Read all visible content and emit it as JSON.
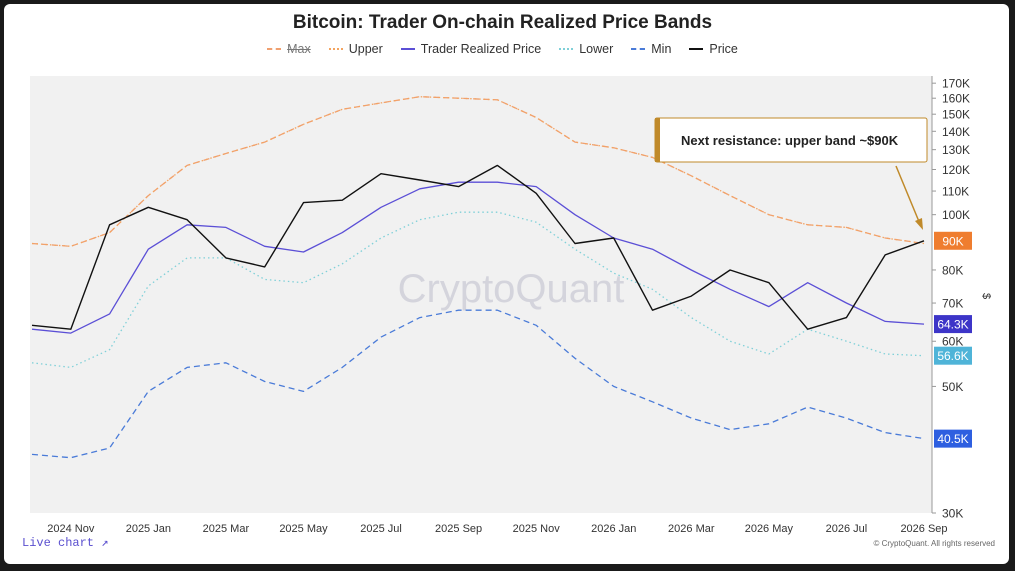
{
  "chart_data": {
    "type": "line",
    "title": "Bitcoin: Trader On-chain Realized Price Bands",
    "ylabel": "$",
    "y_scale": "log",
    "ylim": [
      30000,
      175000
    ],
    "y_ticks": [
      {
        "value": 30000,
        "label": "30K"
      },
      {
        "value": 50000,
        "label": "50K"
      },
      {
        "value": 60000,
        "label": "60K"
      },
      {
        "value": 70000,
        "label": "70K"
      },
      {
        "value": 80000,
        "label": "80K"
      },
      {
        "value": 100000,
        "label": "100K"
      },
      {
        "value": 110000,
        "label": "110K"
      },
      {
        "value": 120000,
        "label": "120K"
      },
      {
        "value": 130000,
        "label": "130K"
      },
      {
        "value": 140000,
        "label": "140K"
      },
      {
        "value": 150000,
        "label": "150K"
      },
      {
        "value": 160000,
        "label": "160K"
      },
      {
        "value": 170000,
        "label": "170K"
      }
    ],
    "x_ticks": [
      "2024 Nov",
      "2025 Jan",
      "2025 Mar",
      "2025 May",
      "2025 Jul",
      "2025 Sep",
      "2025 Nov",
      "2026 Jan",
      "2026 Mar",
      "2026 May",
      "2026 Jul",
      "2026 Sep"
    ],
    "x": [
      "2024-10",
      "2024-11",
      "2024-12",
      "2025-01",
      "2025-02",
      "2025-03",
      "2025-04",
      "2025-05",
      "2025-06",
      "2025-07",
      "2025-08",
      "2025-09",
      "2025-10",
      "2025-11",
      "2025-12",
      "2026-01",
      "2026-02",
      "2026-03",
      "2026-04",
      "2026-05",
      "2026-06",
      "2026-07",
      "2026-08",
      "2026-09"
    ],
    "series": [
      {
        "name": "Max",
        "color": "#f0a070",
        "dash": "dash",
        "values": [
          89000,
          88000,
          93000,
          108000,
          122000,
          128000,
          134000,
          144000,
          153000,
          157000,
          161000,
          160000,
          159000,
          148000,
          134000,
          131000,
          126000,
          117000,
          108000,
          100000,
          96000,
          95000,
          91000,
          89000
        ]
      },
      {
        "name": "Upper",
        "color": "#f4a460",
        "dash": "dot",
        "values": [
          89000,
          88000,
          93000,
          108000,
          122000,
          128000,
          134000,
          144000,
          153000,
          157000,
          161000,
          160000,
          159000,
          148000,
          134000,
          131000,
          126000,
          117000,
          108000,
          100000,
          96000,
          95000,
          91000,
          89000
        ]
      },
      {
        "name": "Trader Realized Price",
        "color": "#5b4fd6",
        "dash": "solid",
        "values": [
          63000,
          62000,
          67000,
          87000,
          96000,
          95000,
          88000,
          86000,
          93000,
          103000,
          111000,
          114000,
          114000,
          112000,
          100000,
          91000,
          87000,
          80000,
          74000,
          69000,
          76000,
          70000,
          65000,
          64300
        ]
      },
      {
        "name": "Lower",
        "color": "#7fd0d8",
        "dash": "dot",
        "values": [
          55000,
          54000,
          58000,
          75000,
          84000,
          84000,
          77000,
          76000,
          82000,
          91000,
          98000,
          101000,
          101000,
          97000,
          87000,
          79000,
          74000,
          66000,
          60000,
          57000,
          63000,
          60000,
          57000,
          56600
        ]
      },
      {
        "name": "Min",
        "color": "#4a7bd8",
        "dash": "dash",
        "values": [
          38000,
          37500,
          39000,
          49000,
          54000,
          55000,
          51000,
          49000,
          54000,
          61000,
          66000,
          68000,
          68000,
          64000,
          56000,
          50000,
          47000,
          44000,
          42000,
          43000,
          46000,
          44000,
          41500,
          40500
        ]
      },
      {
        "name": "Price",
        "color": "#111111",
        "dash": "solid",
        "values": [
          64000,
          63000,
          96000,
          103000,
          98000,
          84000,
          81000,
          105000,
          106000,
          118000,
          115000,
          112000,
          122000,
          109000,
          89000,
          91000,
          68000,
          72000,
          80000,
          76000,
          63000,
          66000,
          85000,
          90000
        ]
      }
    ],
    "badges": [
      {
        "label": "90K",
        "value": 90000,
        "color": "#ef7d2f"
      },
      {
        "label": "64.3K",
        "value": 64300,
        "color": "#3d35c8"
      },
      {
        "label": "56.6K",
        "value": 56600,
        "color": "#4fb4d8"
      },
      {
        "label": "40.5K",
        "value": 40500,
        "color": "#2e5fe0"
      }
    ],
    "annotation": "Next resistance: upper band ~$90K",
    "watermark": "CryptoQuant",
    "grid": false
  },
  "footer": {
    "live_chart": "Live chart ↗",
    "copyright": "© CryptoQuant. All rights reserved"
  }
}
